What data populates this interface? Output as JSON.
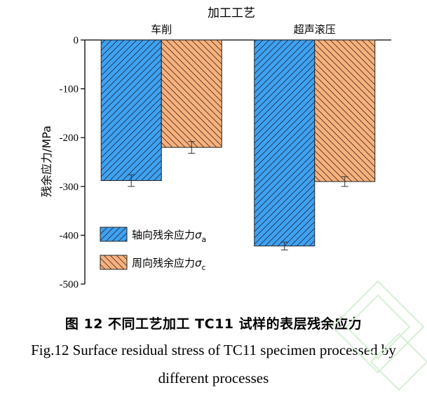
{
  "chart_data": {
    "type": "bar",
    "title": "加工工艺",
    "ylabel": "残余应力/MPa",
    "xlabel": "",
    "ylim": [
      -500,
      0
    ],
    "yticks": [
      0,
      -100,
      -200,
      -300,
      -400,
      -500
    ],
    "x_axis_position": "top",
    "categories": [
      "车削",
      "超声滚压"
    ],
    "series": [
      {
        "name": "轴向残余应力σa",
        "legend_main": "轴向残余应力",
        "sym": "σ",
        "sub": "a",
        "color": "#3FA2F0",
        "values": [
          -288,
          -422
        ],
        "errors": [
          12,
          8
        ]
      },
      {
        "name": "周向残余应力σc",
        "legend_main": "周向残余应力",
        "sym": "σ",
        "sub": "c",
        "color": "#F6B27E",
        "values": [
          -220,
          -290
        ],
        "errors": [
          12,
          10
        ]
      }
    ],
    "hatch": "diagonal",
    "legend_position": "bottom-left",
    "grid": false
  },
  "caption": {
    "zh": "图 12  不同工艺加工 TC11 试样的表层残余应力",
    "en_line1": "Fig.12 Surface residual stress of TC11 specimen processed by",
    "en_line2": "different processes"
  }
}
